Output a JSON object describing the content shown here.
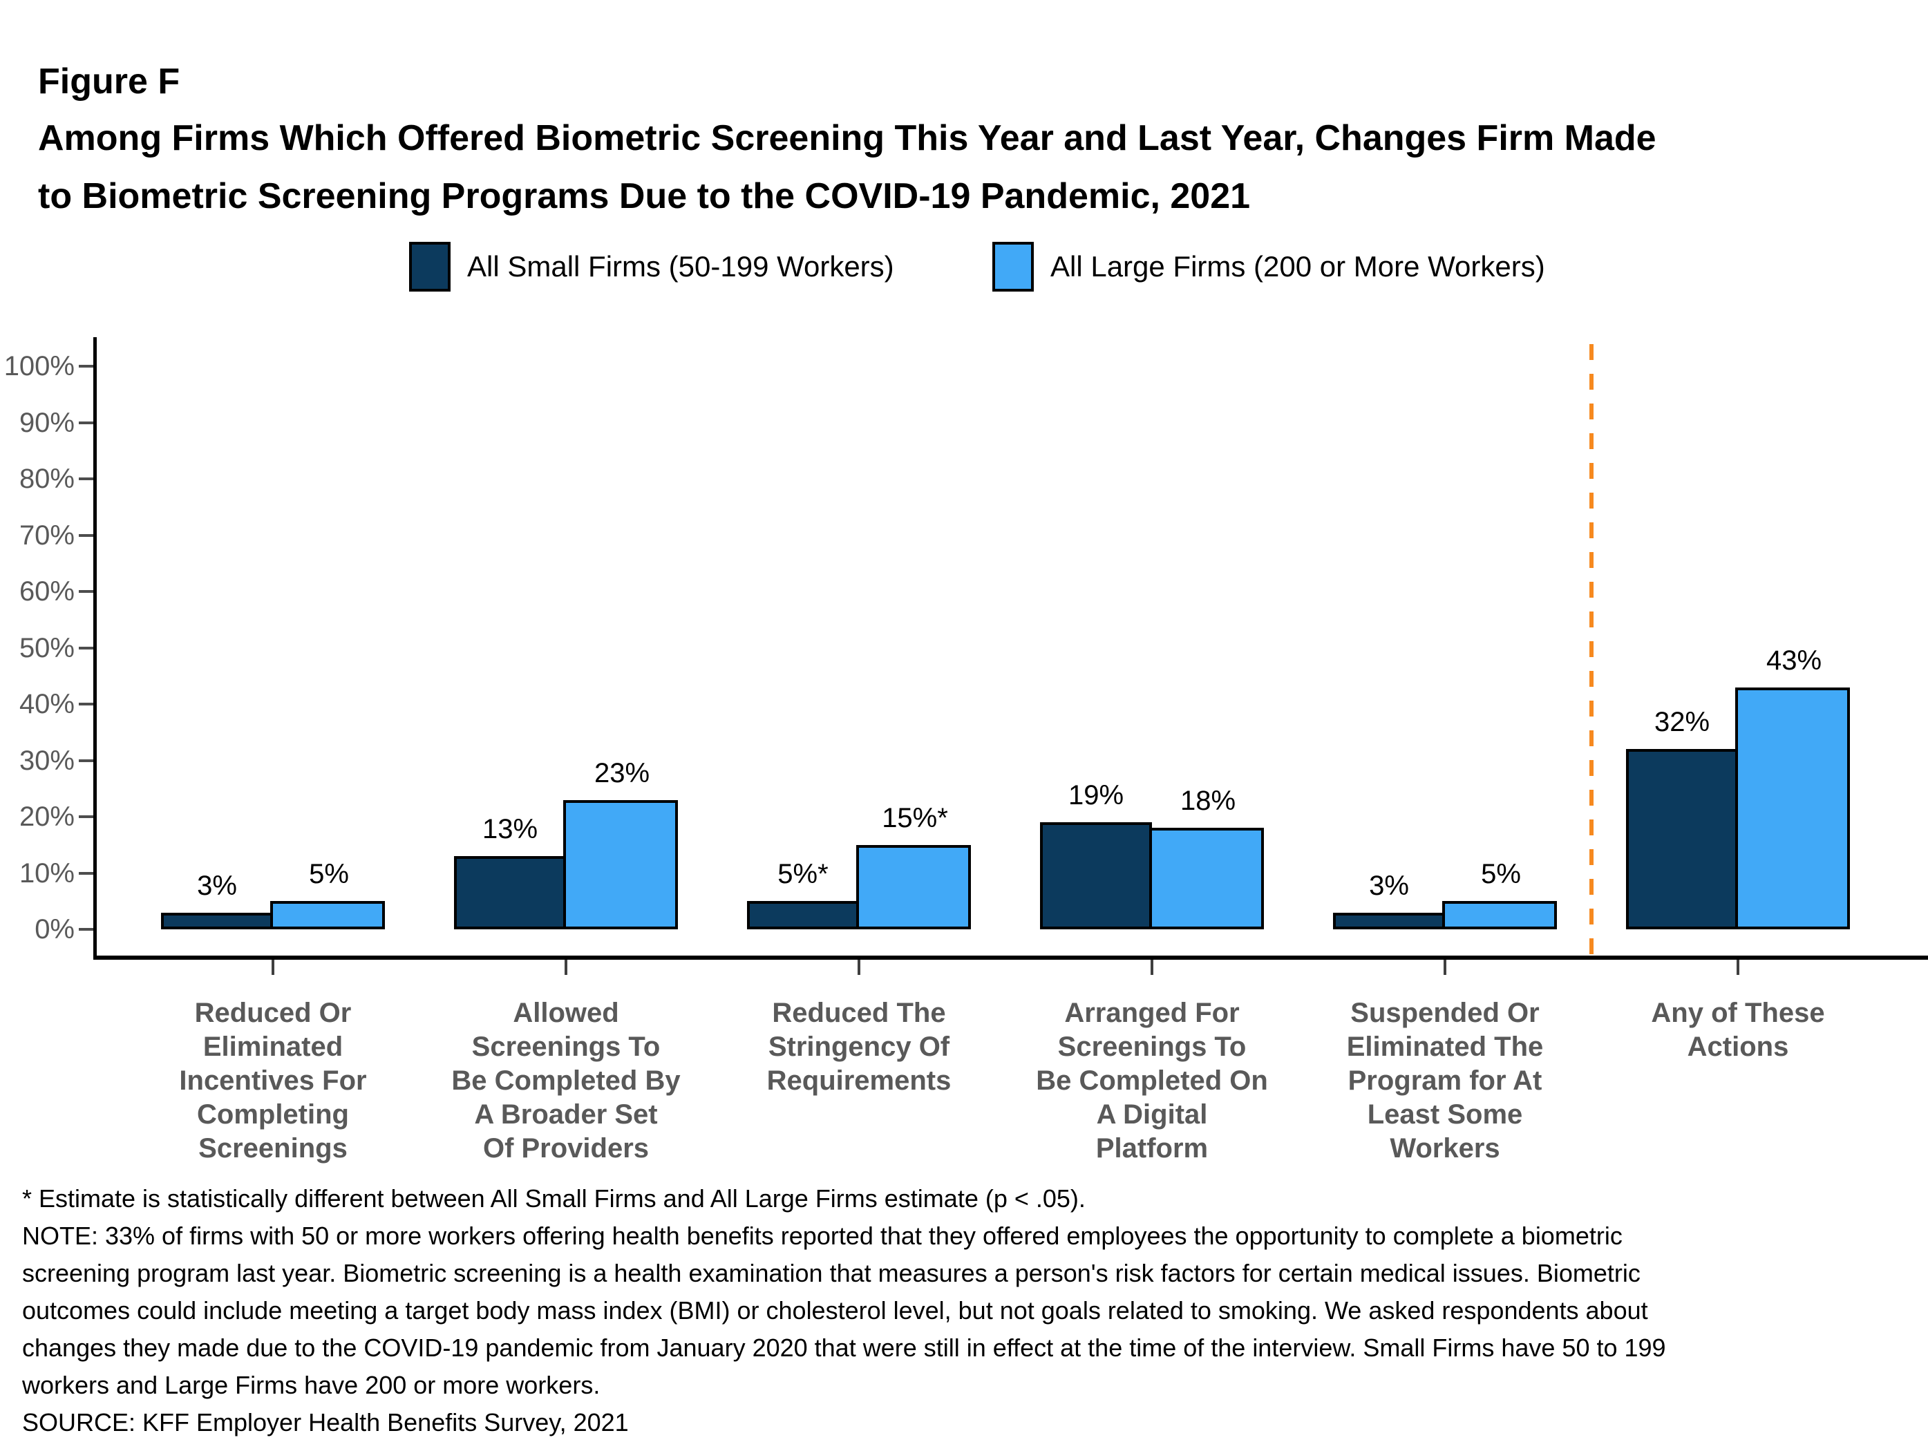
{
  "figure_label": "Figure F",
  "title_lines": [
    "Among Firms Which Offered Biometric Screening This Year and Last Year, Changes Firm Made",
    "to Biometric Screening Programs Due to the COVID-19 Pandemic, 2021"
  ],
  "legend": {
    "items": [
      {
        "label": "All Small Firms (50-199 Workers)",
        "color": "#0C3A5D"
      },
      {
        "label": "All Large Firms (200 or More Workers)",
        "color": "#41A9F7"
      }
    ]
  },
  "chart_data": {
    "type": "bar",
    "title": "Among Firms Which Offered Biometric Screening This Year and Last Year, Changes Firm Made to Biometric Screening Programs Due to the COVID-19 Pandemic, 2021",
    "categories": [
      "Reduced Or\nEliminated\nIncentives For\nCompleting\nScreenings",
      "Allowed\nScreenings To\nBe Completed By\nA Broader Set\nOf Providers",
      "Reduced The\nStringency Of\nRequirements",
      "Arranged For\nScreenings To\nBe Completed On\nA Digital\nPlatform",
      "Suspended Or\nEliminated The\nProgram for At\nLeast Some\nWorkers",
      "Any of These\nActions"
    ],
    "series": [
      {
        "name": "All Small Firms (50-199 Workers)",
        "color": "#0C3A5D",
        "values": [
          3,
          13,
          5,
          19,
          3,
          32
        ],
        "labels": [
          "3%",
          "13%",
          "5%*",
          "19%",
          "3%",
          "32%"
        ]
      },
      {
        "name": "All Large Firms (200 or More Workers)",
        "color": "#41A9F7",
        "values": [
          5,
          23,
          15,
          18,
          5,
          43
        ],
        "labels": [
          "5%",
          "23%",
          "15%*",
          "18%",
          "5%",
          "43%"
        ]
      }
    ],
    "ylim": [
      0,
      100
    ],
    "ytick_labels": [
      "0%",
      "10%",
      "20%",
      "30%",
      "40%",
      "50%",
      "60%",
      "70%",
      "80%",
      "90%",
      "100%"
    ],
    "grid": false,
    "legend_position": "top",
    "separator": {
      "before_category": "Any of These\nActions",
      "color": "#F6891F",
      "style": "dashed"
    }
  },
  "footnotes": {
    "lines": [
      "* Estimate is statistically different between All Small Firms and All Large Firms estimate (p < .05).",
      "NOTE: 33% of firms with 50 or more workers offering health benefits reported that they offered employees the opportunity to complete a biometric",
      "screening program last year. Biometric screening is a health examination that measures a person's risk factors for certain medical issues. Biometric",
      "outcomes could include meeting a target body mass index (BMI) or cholesterol level, but not goals related to smoking. We asked respondents about",
      "changes they made due to the COVID-19 pandemic from January 2020 that were still in effect at the time of the interview. Small Firms have 50 to 199",
      "workers and Large Firms have 200 or more workers.",
      "SOURCE: KFF Employer Health Benefits Survey, 2021"
    ]
  }
}
